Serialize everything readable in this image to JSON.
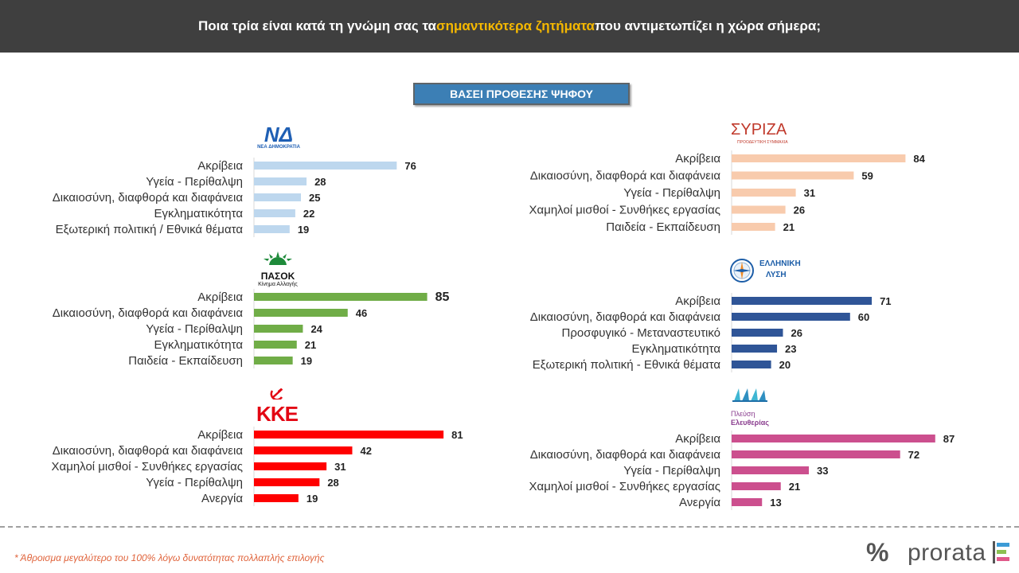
{
  "header": {
    "title_part1": "Ποια τρία είναι κατά τη γνώμη σας τα ",
    "title_highlight": "σημαντικότερα ζητήματα",
    "title_part2": " που αντιμετωπίζει η χώρα σήμερα;"
  },
  "base_label": "ΒΑΣΕΙ ΠΡΟΘΕΣΗΣ ΨΗΦΟΥ",
  "logos": {
    "nd": {
      "mark": "ΝΔ",
      "sub": "ΝΕΑ ΔΗΜΟΚΡΑΤΙΑ"
    },
    "syriza": {
      "mark": "ΣΥΡΙΖΑ",
      "sub": "ΠΡΟΟΔΕΥΤΙΚΗ ΣΥΜΜΑΧΙΑ"
    },
    "pasok": {
      "mark": "ΠΑΣΟΚ",
      "sub": "Κίνημα Αλλαγής"
    },
    "ellisi": {
      "line1": "ΕΛΛΗΝΙΚΗ",
      "line2": "ΛΥΣΗ"
    },
    "kke": {
      "mark": "ΚΚΕ"
    },
    "plefsi": {
      "line1": "Πλεύση",
      "line2": "Ελευθερίας"
    }
  },
  "chart_data": [
    {
      "type": "bar",
      "party": "nd",
      "color": "#bdd7ee",
      "categories": [
        "Ακρίβεια",
        "Υγεία - Περίθαλψη",
        "Δικαιοσύνη, διαφθορά και διαφάνεια",
        "Εγκληματικότητα",
        "Εξωτερική πολιτική / Εθνικά θέματα"
      ],
      "values": [
        76,
        28,
        25,
        22,
        19
      ]
    },
    {
      "type": "bar",
      "party": "syriza",
      "color": "#f8cbad",
      "categories": [
        "Ακρίβεια",
        "Δικαιοσύνη, διαφθορά και διαφάνεια",
        "Υγεία - Περίθαλψη",
        "Χαμηλοί μισθοί - Συνθήκες εργασίας",
        "Παιδεία - Εκπαίδευση"
      ],
      "values": [
        84,
        59,
        31,
        26,
        21
      ]
    },
    {
      "type": "bar",
      "party": "pasok",
      "color": "#70ad47",
      "categories": [
        "Ακρίβεια",
        "Δικαιοσύνη, διαφθορά και διαφάνεια",
        "Υγεία - Περίθαλψη",
        "Εγκληματικότητα",
        "Παιδεία - Εκπαίδευση"
      ],
      "values": [
        85,
        46,
        24,
        21,
        19
      ]
    },
    {
      "type": "bar",
      "party": "ellisi",
      "color": "#2f5597",
      "categories": [
        "Ακρίβεια",
        "Δικαιοσύνη, διαφθορά και διαφάνεια",
        "Προσφυγικό - Μεταναστευτικό",
        "Εγκληματικότητα",
        "Εξωτερική πολιτική - Εθνικά θέματα"
      ],
      "values": [
        71,
        60,
        26,
        23,
        20
      ]
    },
    {
      "type": "bar",
      "party": "kke",
      "color": "#ff0000",
      "categories": [
        "Ακρίβεια",
        "Δικαιοσύνη, διαφθορά και διαφάνεια",
        "Χαμηλοί μισθοί - Συνθήκες εργασίας",
        "Υγεία - Περίθαλψη",
        "Ανεργία"
      ],
      "values": [
        81,
        42,
        31,
        28,
        19
      ]
    },
    {
      "type": "bar",
      "party": "plefsi",
      "color": "#cc4f8e",
      "categories": [
        "Ακρίβεια",
        "Δικαιοσύνη, διαφθορά και διαφάνεια",
        "Υγεία - Περίθαλψη",
        "Χαμηλοί μισθοί - Συνθήκες εργασίας",
        "Ανεργία"
      ],
      "values": [
        87,
        72,
        33,
        21,
        13
      ]
    }
  ],
  "footnote": "* Άθροισμα μεγαλύτερο του 100% λόγω δυνατότητας πολλαπλής επιλογής",
  "brand": {
    "symbol": "%",
    "name": "prorata"
  }
}
